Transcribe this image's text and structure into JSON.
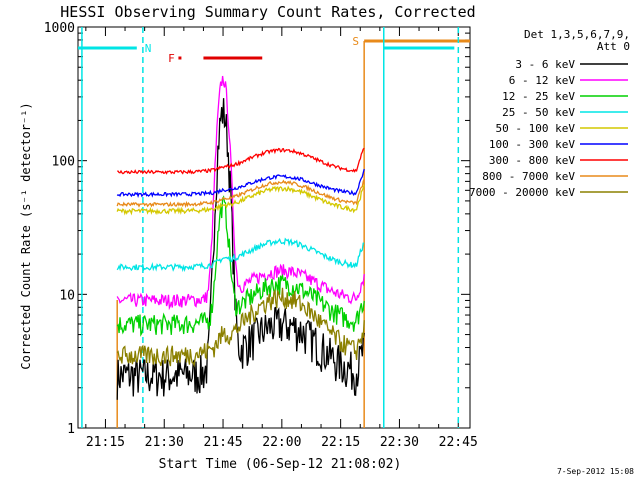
{
  "chart_data": {
    "type": "line",
    "title": "HESSI Observing Summary Count Rates, Corrected",
    "xlabel": "Start Time (06-Sep-12 21:08:02)",
    "ylabel": "Corrected Count Rate (s⁻¹ detector⁻¹)",
    "y_scale": "log",
    "ylim": [
      1,
      1000
    ],
    "xlim": [
      "21:08",
      "22:48"
    ],
    "x_ticks": [
      "21:15",
      "21:30",
      "21:45",
      "22:00",
      "22:15",
      "22:30",
      "22:45"
    ],
    "y_ticks": [
      "1",
      "10",
      "100",
      "1000"
    ],
    "timestamp": "7-Sep-2012 15:08",
    "legend": {
      "placement": "right",
      "header": [
        "Det 1,3,5,6,7,9,",
        "Att 0"
      ]
    },
    "flags": [
      {
        "label": "N",
        "color": "#00e5e5"
      },
      {
        "label": "F",
        "color": "#e00000"
      },
      {
        "label": "S",
        "color": "#e88a1a"
      }
    ],
    "series": [
      {
        "name": "3 - 6 keV",
        "color": "#000000",
        "base": 2.5,
        "pk": 230,
        "pkFrac": 0.92,
        "bump": 3.5,
        "noise": 0.35
      },
      {
        "name": "6 - 12 keV",
        "color": "#ff00ff",
        "base": 9,
        "pk": 400,
        "pkFrac": 0.95,
        "bump": 6,
        "noise": 0.12
      },
      {
        "name": "12 - 25 keV",
        "color": "#00d000",
        "base": 6,
        "pk": 40,
        "pkFrac": 0.9,
        "bump": 6,
        "noise": 0.18
      },
      {
        "name": "25 - 50 keV",
        "color": "#00e5e5",
        "base": 16,
        "pk": 8,
        "pkFrac": 0,
        "bump": 9,
        "noise": 0.05
      },
      {
        "name": "50 - 100 keV",
        "color": "#d4c800",
        "base": 42,
        "pk": 8,
        "pkFrac": 0,
        "bump": 20,
        "noise": 0.04
      },
      {
        "name": "100 - 300 keV",
        "color": "#0000ff",
        "base": 56,
        "pk": 8,
        "pkFrac": 0,
        "bump": 20,
        "noise": 0.03
      },
      {
        "name": "300 - 800 keV",
        "color": "#ff0000",
        "base": 82,
        "pk": 10,
        "pkFrac": 0,
        "bump": 38,
        "noise": 0.03
      },
      {
        "name": "800 - 7000 keV",
        "color": "#e88a1a",
        "base": 47,
        "pk": 8,
        "pkFrac": 0,
        "bump": 22,
        "noise": 0.03
      },
      {
        "name": "7000 - 20000 keV",
        "color": "#8b8000",
        "base": 3.5,
        "pk": 4,
        "pkFrac": 0,
        "bump": 6,
        "noise": 0.18
      }
    ]
  }
}
